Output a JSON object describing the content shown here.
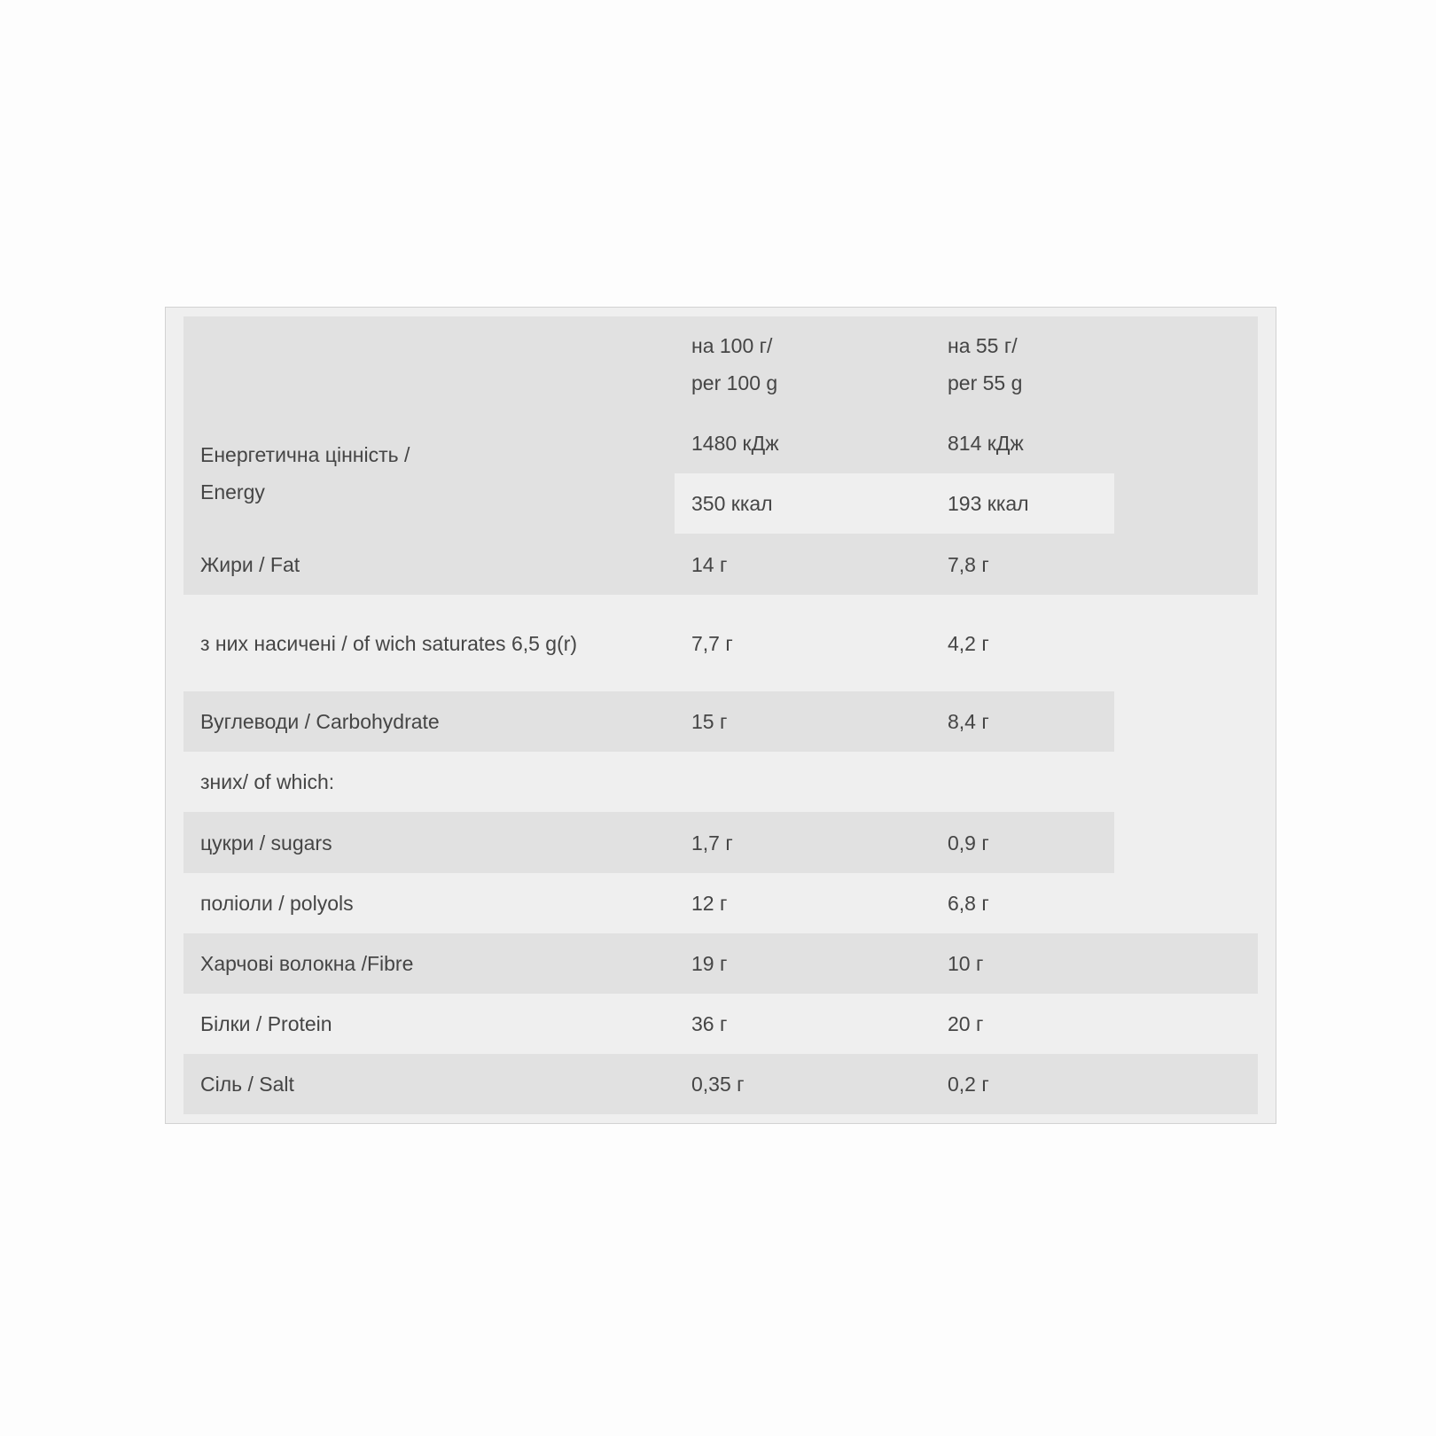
{
  "header": {
    "col1": "",
    "col2_line1": "на 100 г/",
    "col2_line2": "per 100 g",
    "col3_line1": "на 55 г/",
    "col3_line2": "per 55 g"
  },
  "colors": {
    "row_dark": "#e1e1e1",
    "row_light": "#efefef",
    "text": "#454545"
  },
  "energy": {
    "label_line1": "Енергетична цінність /",
    "label_line2": "Energy",
    "kj_100": "1480 кДж",
    "kj_55": "814 кДж",
    "kcal_100": "350 ккал",
    "kcal_55": "193 ккал"
  },
  "rows": [
    {
      "label": "Жири / Fat",
      "per100": "14 г",
      "per55": "7,8 г"
    },
    {
      "label": "з них насичені / of wich saturates 6,5 g(r)",
      "per100": "7,7 г",
      "per55": "4,2 г"
    },
    {
      "label": "Вуглеводи / Carbohydrate",
      "per100": "15 г",
      "per55": "8,4 г"
    },
    {
      "label": "зних/ of which:",
      "per100": "",
      "per55": ""
    },
    {
      "label": "цукри / sugars",
      "per100": "1,7 г",
      "per55": "0,9 г"
    },
    {
      "label": "поліоли / polyols",
      "per100": "12 г",
      "per55": "6,8 г"
    },
    {
      "label": "Харчові волокна /Fibre",
      "per100": "19 г",
      "per55": "10 г"
    },
    {
      "label": "Білки / Protein",
      "per100": "36 г",
      "per55": "20 г"
    },
    {
      "label": "Сіль / Salt",
      "per100": "0,35 г",
      "per55": "0,2 г"
    }
  ]
}
